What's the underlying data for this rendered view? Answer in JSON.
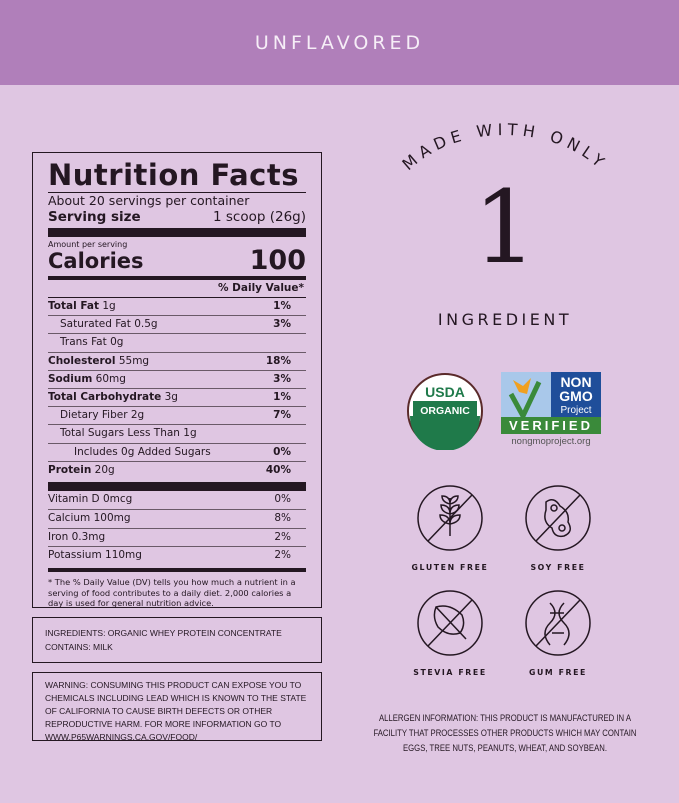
{
  "header": {
    "flavor": "UNFLAVORED"
  },
  "nutrition": {
    "title": "Nutrition Facts",
    "servings": "About 20 servings per container",
    "serving_size_label": "Serving size",
    "serving_size_value": "1 scoop (26g)",
    "amount_per_serving": "Amount per serving",
    "calories_label": "Calories",
    "calories_value": "100",
    "dv_header": "% Daily Value*",
    "rows": [
      {
        "name": "Total Fat",
        "amount": "1g",
        "dv": "1%"
      },
      {
        "name": "Saturated Fat",
        "amount": "0.5g",
        "dv": "3%"
      },
      {
        "name": "Trans Fat",
        "amount": "0g",
        "dv": ""
      },
      {
        "name": "Cholesterol",
        "amount": "55mg",
        "dv": "18%"
      },
      {
        "name": "Sodium",
        "amount": "60mg",
        "dv": "3%"
      },
      {
        "name": "Total Carbohydrate",
        "amount": "3g",
        "dv": "1%"
      },
      {
        "name": "Dietary Fiber",
        "amount": "2g",
        "dv": "7%"
      },
      {
        "name": "Total Sugars Less Than 1g",
        "amount": "",
        "dv": ""
      },
      {
        "name": "Includes 0g Added Sugars",
        "amount": "",
        "dv": "0%"
      },
      {
        "name": "Protein",
        "amount": "20g",
        "dv": "40%"
      }
    ],
    "vitamins": [
      {
        "label": "Vitamin D 0mcg",
        "dv": "0%"
      },
      {
        "label": "Calcium 100mg",
        "dv": "8%"
      },
      {
        "label": "Iron 0.3mg",
        "dv": "2%"
      },
      {
        "label": "Potassium 110mg",
        "dv": "2%"
      }
    ],
    "footnote": "* The % Daily Value (DV) tells you how much a nutrient in a serving of food contributes to a daily diet. 2,000 calories a day is used for general nutrition advice."
  },
  "ingredients": {
    "line1": "Ingredients: Organic Whey Protein Concentrate",
    "line2": "Contains: Milk"
  },
  "warning": "Warning: Consuming this product can expose you to chemicals including lead which is known to the State of California to cause birth defects or other reproductive harm. For more information go to www.P65Warnings.ca.gov/food/",
  "claim": {
    "arc": "MADE WITH ONLY",
    "number": "1",
    "word": "INGREDIENT"
  },
  "badges": {
    "usda_top": "USDA",
    "usda_bottom": "ORGANIC",
    "ngmo_1": "NON",
    "ngmo_2": "GMO",
    "ngmo_3": "Project",
    "ngmo_verified": "VERIFIED",
    "ngmo_url": "nongmoproject.org",
    "colors": {
      "usda_green": "#1f7a4a",
      "ngmo_blue": "#1f4e9a",
      "ngmo_green": "#3a8a3a",
      "butterfly": "#f0a020"
    }
  },
  "free_from": [
    {
      "label": "GLUTEN FREE",
      "icon": "wheat-icon"
    },
    {
      "label": "SOY FREE",
      "icon": "soybean-icon"
    },
    {
      "label": "STEVIA FREE",
      "icon": "leaf-icon"
    },
    {
      "label": "GUM FREE",
      "icon": "gum-icon"
    }
  ],
  "allergen": "ALLERGEN INFORMATION: THIS PRODUCT IS MANUFACTURED IN A FACILITY THAT PROCESSES OTHER PRODUCTS WHICH MAY CONTAIN EGGS, TREE NUTS, PEANUTS, WHEAT, AND SOYBEAN."
}
